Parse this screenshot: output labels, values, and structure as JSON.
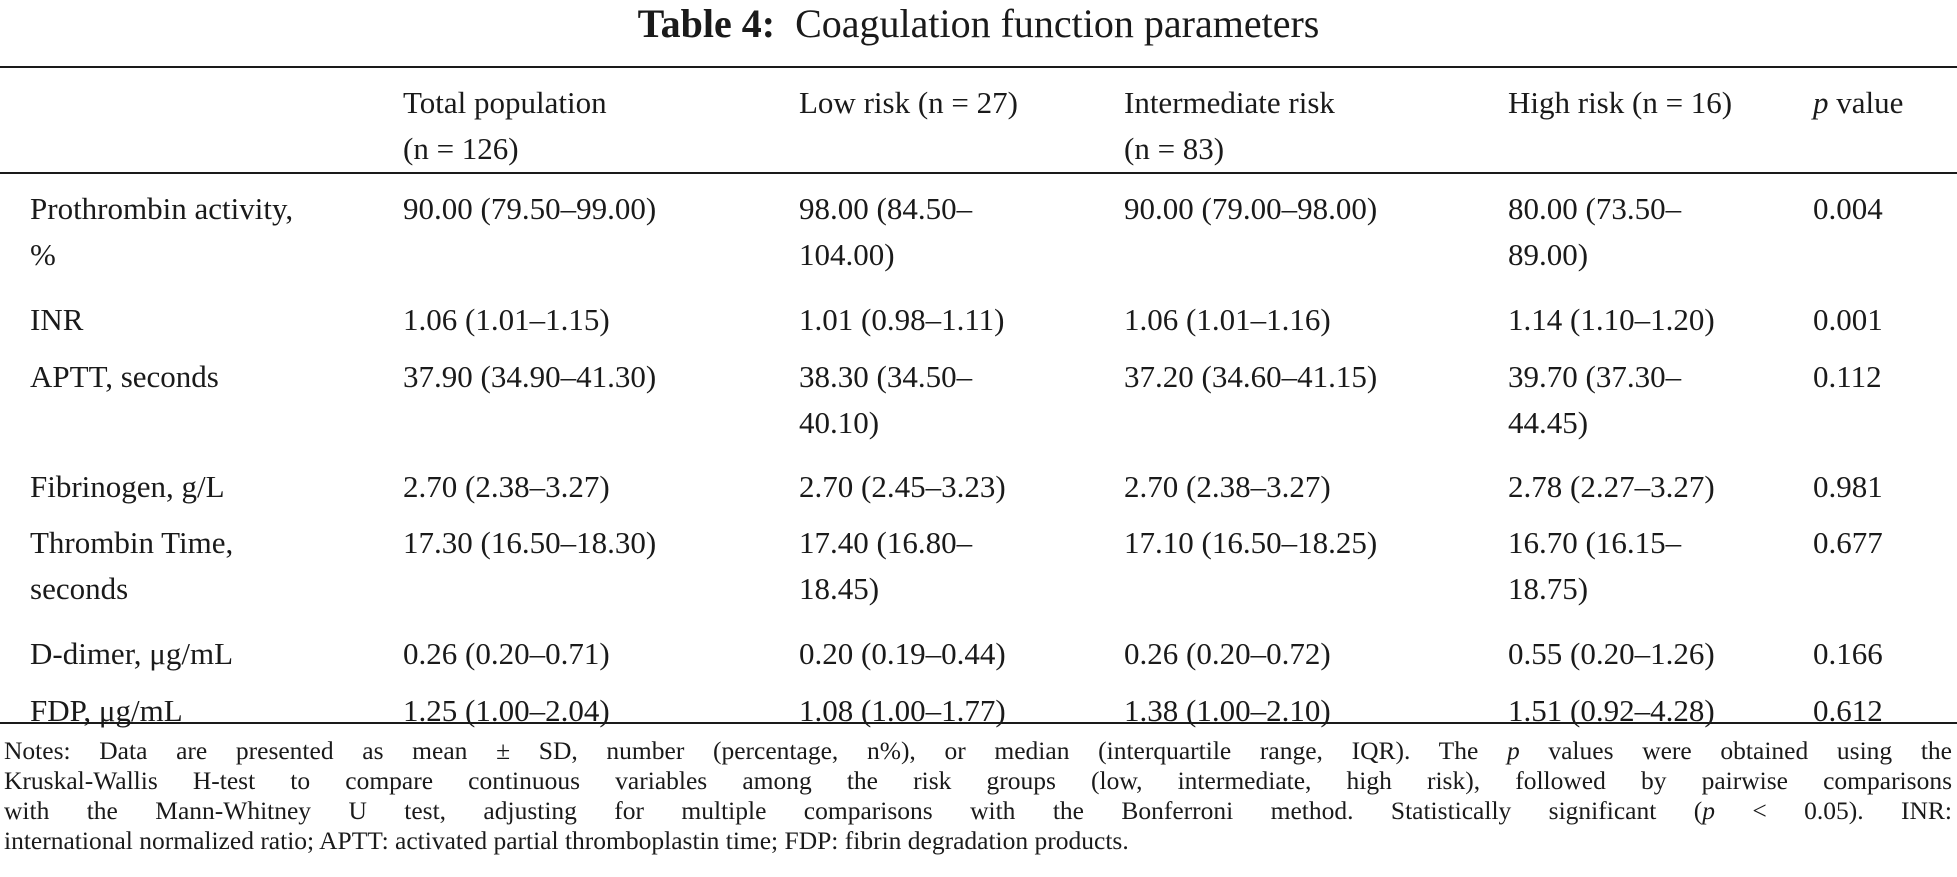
{
  "table": {
    "label": "Table 4:",
    "title": "Coagulation function parameters",
    "columns": {
      "c0": "",
      "c1": [
        "Total population",
        "(n = 126)"
      ],
      "c2": [
        "Low risk (n = 27)"
      ],
      "c3": [
        "Intermediate risk",
        "(n = 83)"
      ],
      "c4": [
        "High risk (n = 16)"
      ],
      "c5_italic": "p",
      "c5_rest": " value"
    },
    "rows": [
      {
        "param": [
          "Prothrombin activity,",
          "%"
        ],
        "total": [
          "90.00 (79.50–99.00)"
        ],
        "low": [
          "98.00 (84.50–",
          "104.00)"
        ],
        "inter": [
          "90.00 (79.00–98.00)"
        ],
        "high": [
          "80.00 (73.50–",
          "89.00)"
        ],
        "p": "0.004"
      },
      {
        "param": [
          "INR"
        ],
        "total": [
          "1.06 (1.01–1.15)"
        ],
        "low": [
          "1.01 (0.98–1.11)"
        ],
        "inter": [
          "1.06 (1.01–1.16)"
        ],
        "high": [
          "1.14 (1.10–1.20)"
        ],
        "p": "0.001"
      },
      {
        "param": [
          "APTT, seconds"
        ],
        "total": [
          "37.90 (34.90–41.30)"
        ],
        "low": [
          "38.30 (34.50–",
          "40.10)"
        ],
        "inter": [
          "37.20 (34.60–41.15)"
        ],
        "high": [
          "39.70 (37.30–",
          "44.45)"
        ],
        "p": "0.112"
      },
      {
        "param": [
          "Fibrinogen, g/L"
        ],
        "total": [
          "2.70 (2.38–3.27)"
        ],
        "low": [
          "2.70 (2.45–3.23)"
        ],
        "inter": [
          "2.70 (2.38–3.27)"
        ],
        "high": [
          "2.78 (2.27–3.27)"
        ],
        "p": "0.981"
      },
      {
        "param": [
          "Thrombin Time,",
          "seconds"
        ],
        "total": [
          "17.30 (16.50–18.30)"
        ],
        "low": [
          "17.40 (16.80–",
          "18.45)"
        ],
        "inter": [
          "17.10 (16.50–18.25)"
        ],
        "high": [
          "16.70 (16.15–",
          "18.75)"
        ],
        "p": "0.677"
      },
      {
        "param": [
          "D-dimer, μg/mL"
        ],
        "total": [
          "0.26 (0.20–0.71)"
        ],
        "low": [
          "0.20 (0.19–0.44)"
        ],
        "inter": [
          "0.26 (0.20–0.72)"
        ],
        "high": [
          "0.55 (0.20–1.26)"
        ],
        "p": "0.166"
      },
      {
        "param": [
          "FDP, μg/mL"
        ],
        "total": [
          "1.25 (1.00–2.04)"
        ],
        "low": [
          "1.08 (1.00–1.77)"
        ],
        "inter": [
          "1.38 (1.00–2.10)"
        ],
        "high": [
          "1.51 (0.92–4.28)"
        ],
        "p": "0.612"
      }
    ]
  },
  "notes": {
    "line1_a": "Notes: Data are presented as mean ± SD, number (percentage, n%), or median (interquartile range, IQR). The ",
    "line1_p": "p",
    "line1_b": " values were obtained using the",
    "line2": "Kruskal-Wallis H-test to compare continuous variables among the risk groups (low, intermediate, high risk), followed by pairwise comparisons",
    "line3_a": "with the Mann-Whitney U test, adjusting for multiple comparisons with the Bonferroni method. Statistically significant (",
    "line3_p": "p",
    "line3_b": " < 0.05). INR:",
    "line4": "international normalized ratio; APTT: activated partial thromboplastin time; FDP: fibrin degradation products."
  }
}
